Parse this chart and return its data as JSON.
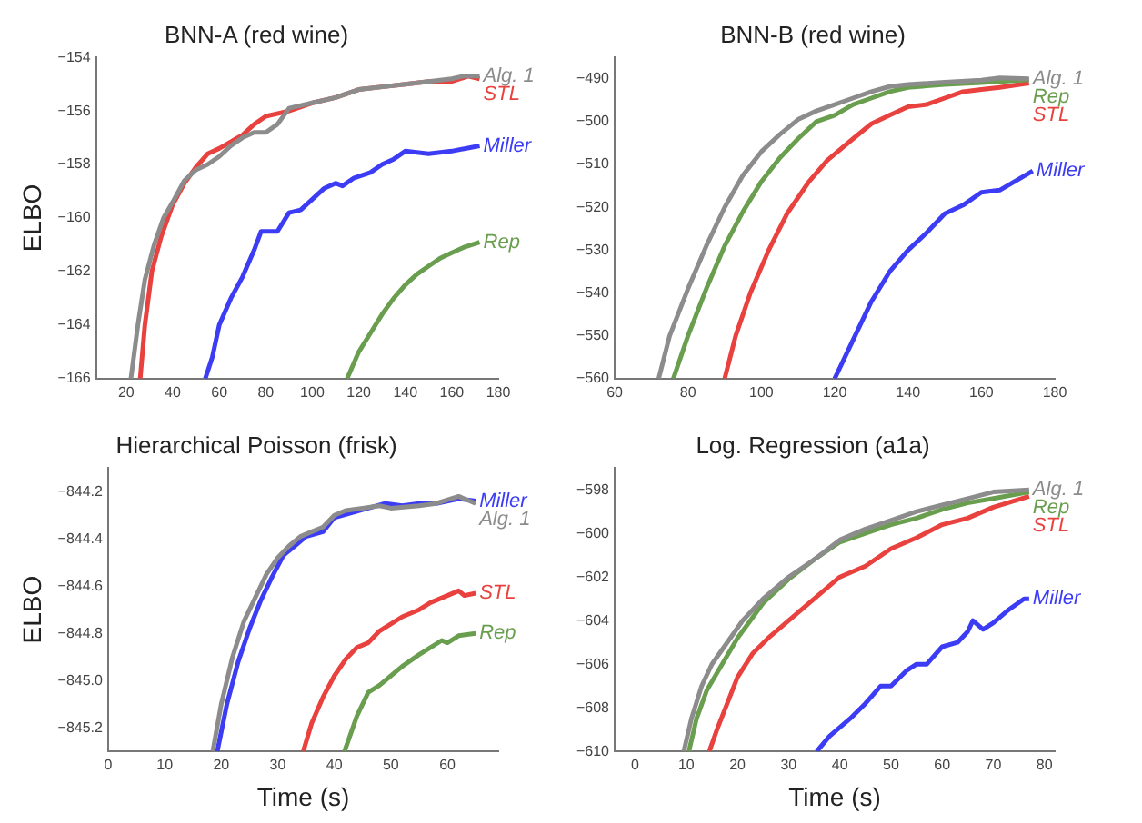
{
  "chart_data": [
    {
      "type": "line",
      "title": "BNN-A (red wine)",
      "ylabel": "ELBO",
      "xlim": [
        7,
        180
      ],
      "xticks": [
        20,
        40,
        60,
        80,
        100,
        120,
        140,
        160,
        180
      ],
      "ylim": [
        -166,
        -154
      ],
      "yticks": [
        -166,
        -164,
        -162,
        -160,
        -158,
        -156,
        -154
      ],
      "series": [
        {
          "name": "Alg. 1",
          "color": "#8c8c8c",
          "x": [
            22,
            25,
            28,
            32,
            36,
            40,
            45,
            50,
            55,
            60,
            65,
            70,
            75,
            80,
            85,
            90,
            100,
            110,
            120,
            130,
            140,
            150,
            160,
            165,
            172
          ],
          "values": [
            -166,
            -164,
            -162.3,
            -161,
            -160,
            -159.4,
            -158.6,
            -158.2,
            -158,
            -157.7,
            -157.3,
            -157,
            -156.8,
            -156.8,
            -156.5,
            -155.9,
            -155.7,
            -155.5,
            -155.2,
            -155.1,
            -155,
            -154.9,
            -154.8,
            -154.7,
            -154.7
          ]
        },
        {
          "name": "STL",
          "color": "#e8413e",
          "x": [
            26,
            28,
            31,
            35,
            40,
            45,
            50,
            55,
            60,
            70,
            75,
            80,
            90,
            100,
            110,
            120,
            130,
            140,
            150,
            160,
            167,
            172
          ],
          "values": [
            -166,
            -164,
            -162,
            -160.7,
            -159.5,
            -158.7,
            -158.1,
            -157.6,
            -157.4,
            -156.9,
            -156.5,
            -156.2,
            -156,
            -155.7,
            -155.5,
            -155.2,
            -155.1,
            -155,
            -154.9,
            -154.9,
            -154.7,
            -154.8
          ]
        },
        {
          "name": "Miller",
          "color": "#3c3cf5",
          "x": [
            54,
            57,
            60,
            65,
            70,
            75,
            78,
            85,
            90,
            95,
            100,
            105,
            110,
            113,
            118,
            125,
            130,
            135,
            140,
            150,
            160,
            172
          ],
          "values": [
            -166,
            -165.2,
            -164,
            -163,
            -162.2,
            -161.2,
            -160.5,
            -160.5,
            -159.8,
            -159.7,
            -159.3,
            -158.9,
            -158.7,
            -158.8,
            -158.5,
            -158.3,
            -158,
            -157.8,
            -157.5,
            -157.6,
            -157.5,
            -157.3
          ]
        },
        {
          "name": "Rep",
          "color": "#6a9e4f",
          "x": [
            115,
            120,
            125,
            130,
            135,
            140,
            145,
            150,
            155,
            160,
            165,
            172
          ],
          "values": [
            -166,
            -165,
            -164.3,
            -163.6,
            -163,
            -162.5,
            -162.1,
            -161.8,
            -161.5,
            -161.3,
            -161.1,
            -160.9
          ]
        }
      ]
    },
    {
      "type": "line",
      "title": "BNN-B (red wine)",
      "xlim": [
        60,
        180
      ],
      "xticks": [
        60,
        80,
        100,
        120,
        140,
        160,
        180
      ],
      "ylim": [
        -560,
        -485
      ],
      "yticks": [
        -560,
        -550,
        -540,
        -530,
        -520,
        -510,
        -500,
        -490
      ],
      "series": [
        {
          "name": "Alg. 1",
          "color": "#8c8c8c",
          "x": [
            72,
            75,
            80,
            85,
            90,
            95,
            100,
            105,
            110,
            115,
            120,
            125,
            130,
            135,
            140,
            150,
            160,
            165,
            173
          ],
          "values": [
            -560,
            -550,
            -539,
            -529,
            -520,
            -512.5,
            -507,
            -503,
            -499.5,
            -497.5,
            -496,
            -494.5,
            -493,
            -491.8,
            -491.3,
            -490.8,
            -490.3,
            -489.8,
            -490
          ]
        },
        {
          "name": "Rep",
          "color": "#6a9e4f",
          "x": [
            76,
            80,
            85,
            90,
            95,
            100,
            105,
            110,
            115,
            120,
            125,
            130,
            135,
            140,
            150,
            160,
            173
          ],
          "values": [
            -560,
            -550,
            -539,
            -529,
            -521,
            -514,
            -508.5,
            -504,
            -500,
            -498.5,
            -496,
            -494.5,
            -493,
            -492,
            -491.3,
            -490.9,
            -490.2
          ]
        },
        {
          "name": "STL",
          "color": "#e8413e",
          "x": [
            90,
            93,
            97,
            102,
            107,
            113,
            118,
            125,
            130,
            135,
            140,
            145,
            150,
            155,
            160,
            165,
            173
          ],
          "values": [
            -560,
            -550,
            -540,
            -530,
            -521.5,
            -514,
            -509,
            -504,
            -500.5,
            -498.5,
            -496.5,
            -496,
            -494.5,
            -493,
            -492.5,
            -492,
            -491
          ]
        },
        {
          "name": "Miller",
          "color": "#3c3cf5",
          "x": [
            120,
            125,
            130,
            135,
            140,
            145,
            150,
            155,
            160,
            165,
            170,
            174
          ],
          "values": [
            -560,
            -551,
            -542,
            -535,
            -530,
            -526,
            -521.5,
            -519.5,
            -516.5,
            -516,
            -513.5,
            -511.5
          ]
        }
      ]
    },
    {
      "type": "line",
      "title": "Hierarchical Poisson (frisk)",
      "xlabel": "Time (s)",
      "ylabel": "ELBO",
      "xlim": [
        0,
        69
      ],
      "xticks": [
        0,
        10,
        20,
        30,
        40,
        50,
        60
      ],
      "ylim": [
        -845.3,
        -844.1
      ],
      "yticks": [
        -845.2,
        {
          "value": -845,
          "label": "−845.0"
        },
        -844.8,
        -844.6,
        -844.4,
        -844.2
      ],
      "series": [
        {
          "name": "Alg. 1",
          "color": "#8c8c8c",
          "x": [
            18.5,
            20,
            22,
            24,
            26,
            28,
            30,
            32,
            34,
            36,
            38,
            40,
            42,
            45,
            48,
            50,
            55,
            58,
            62,
            65
          ],
          "values": [
            -845.3,
            -845.1,
            -844.9,
            -844.75,
            -844.65,
            -844.55,
            -844.48,
            -844.43,
            -844.39,
            -844.37,
            -844.35,
            -844.3,
            -844.28,
            -844.27,
            -844.26,
            -844.27,
            -844.26,
            -844.25,
            -844.22,
            -844.25
          ]
        },
        {
          "name": "Miller",
          "color": "#3c3cf5",
          "x": [
            19.3,
            21,
            23,
            25,
            27,
            29,
            31,
            33,
            35,
            38,
            40,
            43,
            46,
            49,
            52,
            55,
            58,
            62,
            65
          ],
          "values": [
            -845.3,
            -845.1,
            -844.92,
            -844.78,
            -844.66,
            -844.56,
            -844.47,
            -844.43,
            -844.39,
            -844.37,
            -844.31,
            -844.29,
            -844.27,
            -844.25,
            -844.26,
            -844.25,
            -844.25,
            -844.23,
            -844.24
          ]
        },
        {
          "name": "STL",
          "color": "#e8413e",
          "x": [
            34.5,
            36,
            38,
            40,
            42,
            44,
            46,
            48,
            50,
            52,
            55,
            57,
            60,
            62,
            63,
            65
          ],
          "values": [
            -845.3,
            -845.18,
            -845.07,
            -844.98,
            -844.91,
            -844.86,
            -844.84,
            -844.79,
            -844.76,
            -844.73,
            -844.7,
            -844.67,
            -844.64,
            -844.62,
            -844.64,
            -844.63
          ]
        },
        {
          "name": "Rep",
          "color": "#6a9e4f",
          "x": [
            41.8,
            44,
            46,
            48,
            50,
            52,
            55,
            57,
            59,
            60,
            62,
            65
          ],
          "values": [
            -845.3,
            -845.15,
            -845.05,
            -845.02,
            -844.98,
            -844.94,
            -844.89,
            -844.86,
            -844.83,
            -844.84,
            -844.81,
            -844.8
          ]
        }
      ]
    },
    {
      "type": "line",
      "title": "Log. Regression (a1a)",
      "xlabel": "Time (s)",
      "xlim": [
        -4,
        82
      ],
      "xticks": [
        0,
        10,
        20,
        30,
        40,
        50,
        60,
        70,
        80
      ],
      "ylim": [
        -610,
        -597
      ],
      "yticks": [
        -610,
        -608,
        -606,
        -604,
        -602,
        -600,
        -598
      ],
      "series": [
        {
          "name": "Alg. 1",
          "color": "#8c8c8c",
          "x": [
            9.5,
            11,
            13,
            15,
            18,
            21,
            25,
            30,
            35,
            40,
            45,
            50,
            55,
            60,
            65,
            70,
            77
          ],
          "values": [
            -610,
            -608.5,
            -607,
            -606,
            -605,
            -604,
            -603,
            -602,
            -601.2,
            -600.3,
            -599.8,
            -599.4,
            -599,
            -598.7,
            -598.4,
            -598.1,
            -598
          ]
        },
        {
          "name": "Rep",
          "color": "#6a9e4f",
          "x": [
            10.5,
            12,
            14,
            17,
            20,
            25,
            30,
            35,
            40,
            45,
            50,
            55,
            60,
            65,
            70,
            77
          ],
          "values": [
            -610,
            -608.5,
            -607.2,
            -606,
            -604.8,
            -603.2,
            -602.1,
            -601.2,
            -600.4,
            -600,
            -599.6,
            -599.3,
            -598.9,
            -598.6,
            -598.4,
            -598.1
          ]
        },
        {
          "name": "STL",
          "color": "#e8413e",
          "x": [
            14.5,
            16,
            18,
            20,
            23,
            26,
            30,
            35,
            40,
            45,
            50,
            55,
            60,
            65,
            70,
            77
          ],
          "values": [
            -610,
            -609,
            -607.8,
            -606.6,
            -605.5,
            -604.8,
            -604,
            -603,
            -602,
            -601.5,
            -600.7,
            -600.2,
            -599.6,
            -599.3,
            -598.8,
            -598.3
          ]
        },
        {
          "name": "Miller",
          "color": "#3c3cf5",
          "x": [
            35.5,
            38,
            42,
            45,
            48,
            50,
            53,
            55,
            57,
            60,
            63,
            65,
            66,
            68,
            70,
            73,
            76,
            77
          ],
          "values": [
            -610,
            -609.3,
            -608.5,
            -607.8,
            -607,
            -607,
            -606.3,
            -606,
            -606,
            -605.2,
            -605,
            -604.5,
            -604,
            -604.4,
            -604.1,
            -603.5,
            -603,
            -603
          ]
        }
      ]
    }
  ]
}
